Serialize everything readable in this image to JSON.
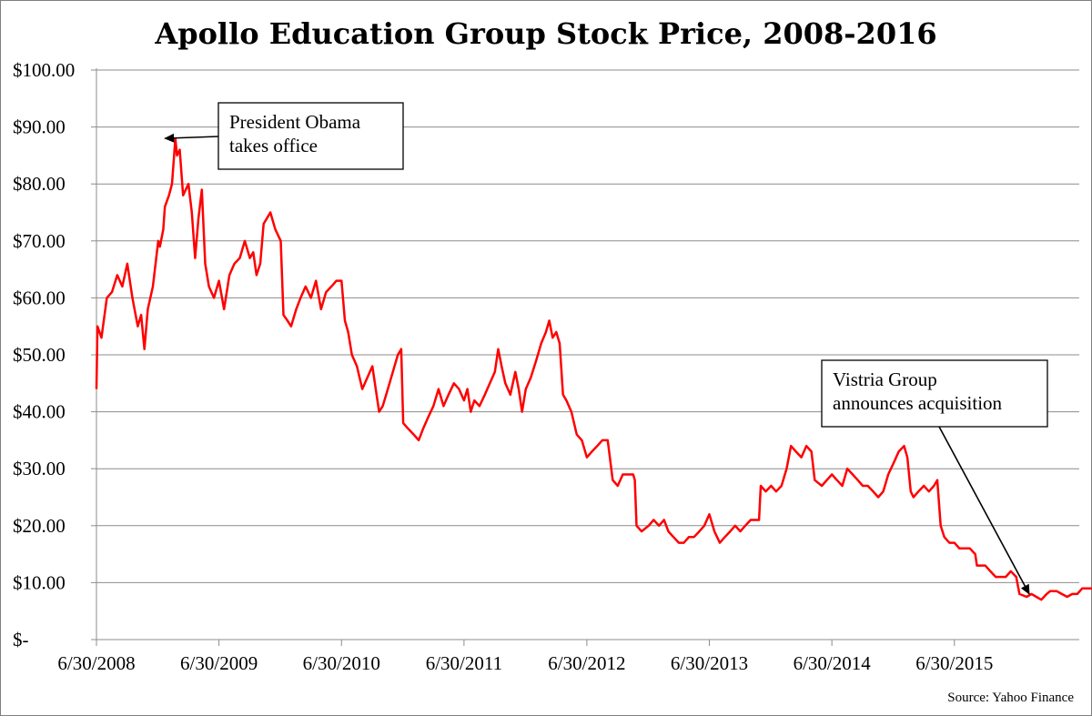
{
  "chart_data": {
    "type": "line",
    "title": "Apollo Education Group Stock Price, 2008-2016",
    "source": "Source: Yahoo Finance",
    "y_ticks": [
      "$100.00",
      "$90.00",
      "$80.00",
      "$70.00",
      "$60.00",
      "$50.00",
      "$40.00",
      "$30.00",
      "$20.00",
      "$10.00",
      "$-"
    ],
    "x_ticks": [
      "6/30/2008",
      "6/30/2009",
      "6/30/2010",
      "6/30/2011",
      "6/30/2012",
      "6/30/2013",
      "6/30/2014",
      "6/30/2015"
    ],
    "ylim": [
      0,
      100
    ],
    "xlim": [
      "2008-06-30",
      "2016-06-30"
    ],
    "grid": true,
    "series": [
      {
        "color": "#ff0000",
        "points": [
          [
            "2008-06-30",
            44
          ],
          [
            "2008-07-03",
            55
          ],
          [
            "2008-07-15",
            53
          ],
          [
            "2008-07-31",
            60
          ],
          [
            "2008-08-15",
            61
          ],
          [
            "2008-08-31",
            64
          ],
          [
            "2008-09-15",
            62
          ],
          [
            "2008-09-30",
            66
          ],
          [
            "2008-10-15",
            60
          ],
          [
            "2008-10-31",
            55
          ],
          [
            "2008-11-10",
            57
          ],
          [
            "2008-11-20",
            51
          ],
          [
            "2008-11-30",
            58
          ],
          [
            "2008-12-15",
            62
          ],
          [
            "2008-12-31",
            70
          ],
          [
            "2009-01-05",
            69
          ],
          [
            "2009-01-15",
            72
          ],
          [
            "2009-01-20",
            76
          ],
          [
            "2009-02-01",
            78
          ],
          [
            "2009-02-10",
            80
          ],
          [
            "2009-02-20",
            88
          ],
          [
            "2009-02-25",
            85
          ],
          [
            "2009-03-05",
            86
          ],
          [
            "2009-03-15",
            78
          ],
          [
            "2009-03-31",
            80
          ],
          [
            "2009-04-10",
            75
          ],
          [
            "2009-04-20",
            67
          ],
          [
            "2009-04-30",
            74
          ],
          [
            "2009-05-10",
            79
          ],
          [
            "2009-05-20",
            66
          ],
          [
            "2009-05-31",
            62
          ],
          [
            "2009-06-15",
            60
          ],
          [
            "2009-06-30",
            63
          ],
          [
            "2009-07-15",
            58
          ],
          [
            "2009-07-31",
            64
          ],
          [
            "2009-08-15",
            66
          ],
          [
            "2009-08-31",
            67
          ],
          [
            "2009-09-15",
            70
          ],
          [
            "2009-09-30",
            67
          ],
          [
            "2009-10-10",
            68
          ],
          [
            "2009-10-20",
            64
          ],
          [
            "2009-10-31",
            66
          ],
          [
            "2009-11-10",
            73
          ],
          [
            "2009-11-20",
            74
          ],
          [
            "2009-11-30",
            75
          ],
          [
            "2009-12-15",
            72
          ],
          [
            "2009-12-31",
            70
          ],
          [
            "2010-01-08",
            57
          ],
          [
            "2010-01-20",
            56
          ],
          [
            "2010-01-31",
            55
          ],
          [
            "2010-02-15",
            58
          ],
          [
            "2010-02-28",
            60
          ],
          [
            "2010-03-15",
            62
          ],
          [
            "2010-03-31",
            60
          ],
          [
            "2010-04-15",
            63
          ],
          [
            "2010-04-30",
            58
          ],
          [
            "2010-05-15",
            61
          ],
          [
            "2010-05-31",
            62
          ],
          [
            "2010-06-15",
            63
          ],
          [
            "2010-06-30",
            63
          ],
          [
            "2010-07-10",
            56
          ],
          [
            "2010-07-20",
            54
          ],
          [
            "2010-07-31",
            50
          ],
          [
            "2010-08-15",
            48
          ],
          [
            "2010-08-31",
            44
          ],
          [
            "2010-09-15",
            46
          ],
          [
            "2010-09-30",
            48
          ],
          [
            "2010-10-10",
            44
          ],
          [
            "2010-10-20",
            40
          ],
          [
            "2010-10-31",
            41
          ],
          [
            "2010-11-15",
            44
          ],
          [
            "2010-11-30",
            47
          ],
          [
            "2010-12-15",
            50
          ],
          [
            "2010-12-25",
            51
          ],
          [
            "2010-12-31",
            38
          ],
          [
            "2011-01-15",
            37
          ],
          [
            "2011-01-31",
            36
          ],
          [
            "2011-02-15",
            35
          ],
          [
            "2011-02-28",
            37
          ],
          [
            "2011-03-15",
            39
          ],
          [
            "2011-03-31",
            41
          ],
          [
            "2011-04-15",
            44
          ],
          [
            "2011-04-30",
            41
          ],
          [
            "2011-05-15",
            43
          ],
          [
            "2011-05-31",
            45
          ],
          [
            "2011-06-15",
            44
          ],
          [
            "2011-06-30",
            42
          ],
          [
            "2011-07-10",
            44
          ],
          [
            "2011-07-20",
            40
          ],
          [
            "2011-07-31",
            42
          ],
          [
            "2011-08-15",
            41
          ],
          [
            "2011-08-31",
            43
          ],
          [
            "2011-09-15",
            45
          ],
          [
            "2011-09-30",
            47
          ],
          [
            "2011-10-10",
            51
          ],
          [
            "2011-10-20",
            48
          ],
          [
            "2011-10-31",
            45
          ],
          [
            "2011-11-15",
            43
          ],
          [
            "2011-11-30",
            47
          ],
          [
            "2011-12-10",
            44
          ],
          [
            "2011-12-20",
            40
          ],
          [
            "2011-12-31",
            44
          ],
          [
            "2012-01-15",
            46
          ],
          [
            "2012-01-31",
            49
          ],
          [
            "2012-02-15",
            52
          ],
          [
            "2012-02-29",
            54
          ],
          [
            "2012-03-10",
            56
          ],
          [
            "2012-03-20",
            53
          ],
          [
            "2012-03-31",
            54
          ],
          [
            "2012-04-10",
            52
          ],
          [
            "2012-04-20",
            43
          ],
          [
            "2012-04-30",
            42
          ],
          [
            "2012-05-15",
            40
          ],
          [
            "2012-05-31",
            36
          ],
          [
            "2012-06-15",
            35
          ],
          [
            "2012-06-30",
            32
          ],
          [
            "2012-07-15",
            33
          ],
          [
            "2012-07-31",
            34
          ],
          [
            "2012-08-15",
            35
          ],
          [
            "2012-08-31",
            35
          ],
          [
            "2012-09-15",
            28
          ],
          [
            "2012-09-30",
            27
          ],
          [
            "2012-10-15",
            29
          ],
          [
            "2012-10-31",
            29
          ],
          [
            "2012-11-15",
            29
          ],
          [
            "2012-11-20",
            28
          ],
          [
            "2012-11-25",
            20
          ],
          [
            "2012-12-10",
            19
          ],
          [
            "2012-12-31",
            20
          ],
          [
            "2013-01-15",
            21
          ],
          [
            "2013-01-31",
            20
          ],
          [
            "2013-02-15",
            21
          ],
          [
            "2013-02-28",
            19
          ],
          [
            "2013-03-15",
            18
          ],
          [
            "2013-03-31",
            17
          ],
          [
            "2013-04-15",
            17
          ],
          [
            "2013-04-30",
            18
          ],
          [
            "2013-05-15",
            18
          ],
          [
            "2013-05-31",
            19
          ],
          [
            "2013-06-15",
            20
          ],
          [
            "2013-06-30",
            22
          ],
          [
            "2013-07-15",
            19
          ],
          [
            "2013-07-31",
            17
          ],
          [
            "2013-08-15",
            18
          ],
          [
            "2013-08-31",
            19
          ],
          [
            "2013-09-15",
            20
          ],
          [
            "2013-09-30",
            19
          ],
          [
            "2013-10-15",
            20
          ],
          [
            "2013-10-31",
            21
          ],
          [
            "2013-11-15",
            21
          ],
          [
            "2013-11-25",
            21
          ],
          [
            "2013-11-30",
            27
          ],
          [
            "2013-12-15",
            26
          ],
          [
            "2013-12-31",
            27
          ],
          [
            "2014-01-15",
            26
          ],
          [
            "2014-01-31",
            27
          ],
          [
            "2014-02-15",
            30
          ],
          [
            "2014-02-28",
            34
          ],
          [
            "2014-03-15",
            33
          ],
          [
            "2014-03-31",
            32
          ],
          [
            "2014-04-15",
            34
          ],
          [
            "2014-04-30",
            33
          ],
          [
            "2014-05-10",
            28
          ],
          [
            "2014-05-31",
            27
          ],
          [
            "2014-06-15",
            28
          ],
          [
            "2014-06-30",
            29
          ],
          [
            "2014-07-15",
            28
          ],
          [
            "2014-07-31",
            27
          ],
          [
            "2014-08-15",
            30
          ],
          [
            "2014-08-31",
            29
          ],
          [
            "2014-09-15",
            28
          ],
          [
            "2014-09-30",
            27
          ],
          [
            "2014-10-15",
            27
          ],
          [
            "2014-10-31",
            26
          ],
          [
            "2014-11-15",
            25
          ],
          [
            "2014-11-30",
            26
          ],
          [
            "2014-12-15",
            29
          ],
          [
            "2014-12-31",
            31
          ],
          [
            "2015-01-15",
            33
          ],
          [
            "2015-01-31",
            34
          ],
          [
            "2015-02-10",
            32
          ],
          [
            "2015-02-20",
            26
          ],
          [
            "2015-02-28",
            25
          ],
          [
            "2015-03-15",
            26
          ],
          [
            "2015-03-31",
            27
          ],
          [
            "2015-04-15",
            26
          ],
          [
            "2015-04-30",
            27
          ],
          [
            "2015-05-10",
            28
          ],
          [
            "2015-05-20",
            20
          ],
          [
            "2015-05-31",
            18
          ],
          [
            "2015-06-15",
            17
          ],
          [
            "2015-06-30",
            17
          ],
          [
            "2015-07-15",
            16
          ],
          [
            "2015-07-31",
            16
          ],
          [
            "2015-08-15",
            16
          ],
          [
            "2015-08-31",
            15
          ],
          [
            "2015-09-05",
            13
          ],
          [
            "2015-09-30",
            13
          ],
          [
            "2015-10-15",
            12
          ],
          [
            "2015-10-31",
            11
          ],
          [
            "2015-11-15",
            11
          ],
          [
            "2015-11-30",
            11
          ],
          [
            "2015-12-15",
            12
          ],
          [
            "2015-12-31",
            11
          ],
          [
            "2016-01-10",
            8
          ],
          [
            "2016-01-31",
            7.5
          ],
          [
            "2016-02-15",
            8
          ],
          [
            "2016-02-29",
            7.5
          ],
          [
            "2016-03-15",
            7
          ],
          [
            "2016-03-31",
            8
          ],
          [
            "2016-04-10",
            8.5
          ],
          [
            "2016-04-30",
            8.5
          ],
          [
            "2016-05-15",
            8
          ],
          [
            "2016-05-31",
            7.5
          ],
          [
            "2016-06-15",
            8
          ],
          [
            "2016-06-30",
            8
          ],
          [
            "2016-07-15",
            9
          ],
          [
            "2016-07-31",
            9
          ],
          [
            "2016-08-15",
            9
          ],
          [
            "2016-08-31",
            9
          ]
        ]
      }
    ],
    "annotations": [
      {
        "lines": [
          "President Obama",
          "takes office"
        ],
        "date": "2009-01-20",
        "value": 88
      },
      {
        "lines": [
          "Vistria Group",
          "announces acquisition"
        ],
        "date": "2016-02-08",
        "value": 8
      }
    ]
  }
}
